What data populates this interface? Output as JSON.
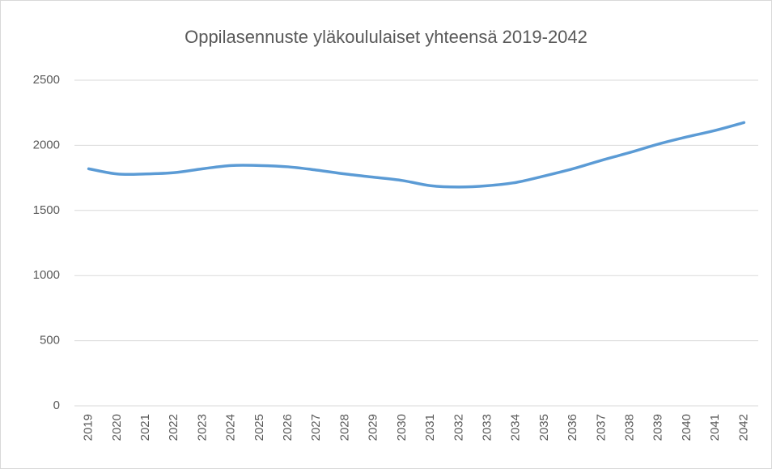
{
  "chart_data": {
    "type": "line",
    "title": "Oppilasennuste yläkoululaiset yhteensä 2019-2042",
    "categories": [
      "2019",
      "2020",
      "2021",
      "2022",
      "2023",
      "2024",
      "2025",
      "2026",
      "2027",
      "2028",
      "2029",
      "2030",
      "2031",
      "2032",
      "2033",
      "2034",
      "2035",
      "2036",
      "2037",
      "2038",
      "2039",
      "2040",
      "2041",
      "2042"
    ],
    "series": [
      {
        "name": "yhteensä",
        "color": "#5b9bd5",
        "values": [
          1820,
          1780,
          1780,
          1790,
          1820,
          1845,
          1845,
          1835,
          1810,
          1780,
          1755,
          1730,
          1690,
          1680,
          1690,
          1715,
          1765,
          1820,
          1885,
          1945,
          2010,
          2065,
          2115,
          2175
        ]
      }
    ],
    "ylim": [
      0,
      2500
    ],
    "yticks": [
      0,
      500,
      1000,
      1500,
      2000,
      2500
    ],
    "grid": true,
    "smooth": true
  }
}
